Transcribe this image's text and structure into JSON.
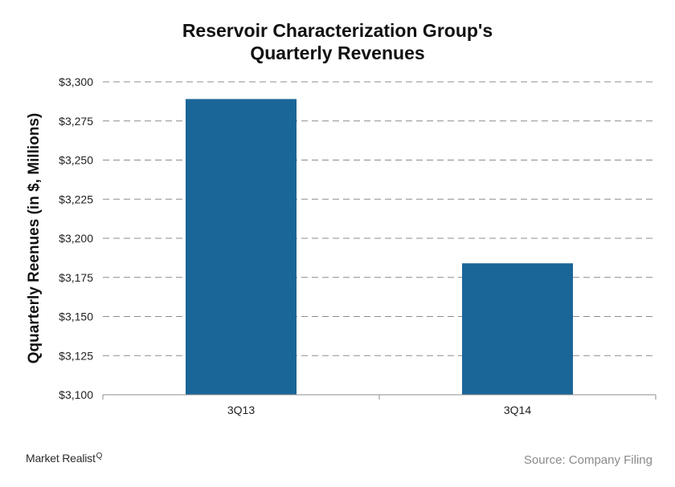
{
  "chart_data": {
    "type": "bar",
    "title_lines": [
      "Reservoir Characterization Group's",
      "Quarterly Revenues"
    ],
    "ylabel": "Qquarterly Reenues (in $, Millions)",
    "xlabel": "",
    "categories": [
      "3Q13",
      "3Q14"
    ],
    "values": [
      3289,
      3184
    ],
    "ylim": [
      3100,
      3300
    ],
    "yticks": [
      3100,
      3125,
      3150,
      3175,
      3200,
      3225,
      3250,
      3275,
      3300
    ],
    "ytick_labels": [
      "$3,100",
      "$3,125",
      "$3,150",
      "$3,175",
      "$3,200",
      "$3,225",
      "$3,250",
      "$3,275",
      "$3,300"
    ],
    "grid": true,
    "grid_style": "dashed",
    "bar_color": "#1a6699"
  },
  "footer": {
    "logo": "Market Realist",
    "logo_mark": "Q",
    "source": "Source: Company Filing"
  }
}
